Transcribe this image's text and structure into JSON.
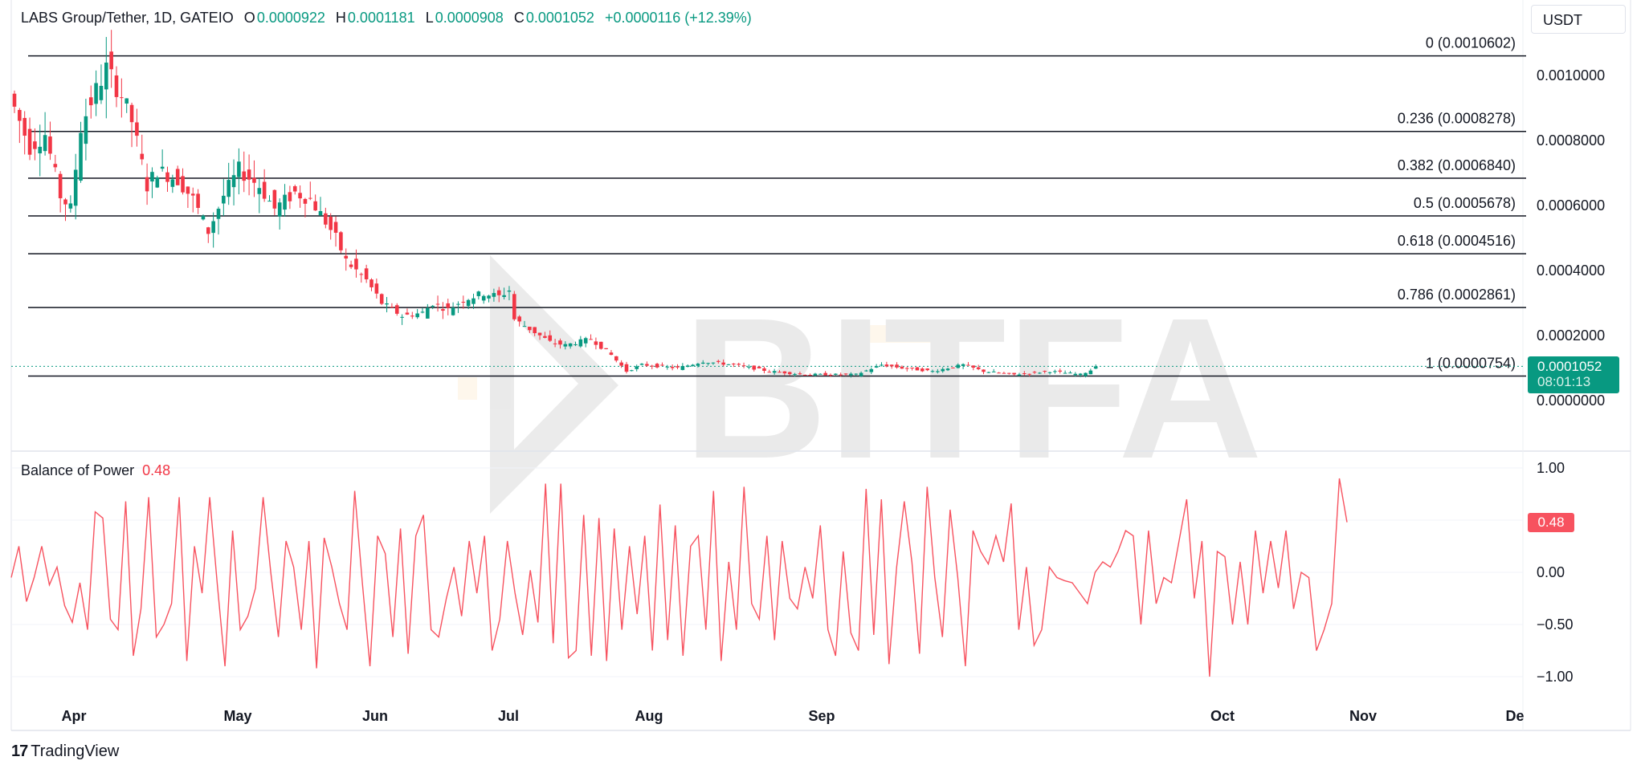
{
  "header": {
    "symbol": "LABS Group/Tether, 1D, GATEIO",
    "open_label": "O",
    "open": "0.0000922",
    "high_label": "H",
    "high": "0.0001181",
    "low_label": "L",
    "low": "0.0000908",
    "close_label": "C",
    "close": "0.0001052",
    "change": "+0.0000116 (+12.39%)"
  },
  "currency": "USDT",
  "last_price": {
    "price": "0.0001052",
    "countdown": "08:01:13"
  },
  "indicator": {
    "name": "Balance of Power",
    "value": "0.48"
  },
  "watermark": "BITFA",
  "footer": {
    "logo_mark": "17",
    "logo_text": "TradingView"
  },
  "colors": {
    "up": "#089981",
    "down": "#f23645",
    "bop_line": "#f7525f",
    "fib_line": "#131722"
  },
  "chart_data": [
    {
      "type": "candlestick",
      "title": "LABS Group/Tether, 1D, GATEIO",
      "price_axis_ticks": [
        "0.0010000",
        "0.0008000",
        "0.0006000",
        "0.0004000",
        "0.0002000",
        "0.0000000"
      ],
      "time_axis_ticks": [
        "Apr",
        "May",
        "Jun",
        "Jul",
        "Aug",
        "Sep",
        "Oct",
        "Nov",
        "De"
      ],
      "ylim": [
        -7e-05,
        0.00114
      ],
      "fib_levels": [
        {
          "level": "0",
          "price": 0.0010602,
          "label": "0 (0.0010602)"
        },
        {
          "level": "0.236",
          "price": 0.0008278,
          "label": "0.236 (0.0008278)"
        },
        {
          "level": "0.382",
          "price": 0.000684,
          "label": "0.382 (0.0006840)"
        },
        {
          "level": "0.5",
          "price": 0.0005678,
          "label": "0.5 (0.0005678)"
        },
        {
          "level": "0.618",
          "price": 0.0004516,
          "label": "0.618 (0.0004516)"
        },
        {
          "level": "0.786",
          "price": 0.0002861,
          "label": "0.786 (0.0002861)"
        },
        {
          "level": "1",
          "price": 7.54e-05,
          "label": "1 (0.0000754)"
        }
      ],
      "close_anchors": [
        [
          0,
          0.0009
        ],
        [
          3,
          0.00078
        ],
        [
          6,
          0.00082
        ],
        [
          9,
          0.00063
        ],
        [
          11,
          0.00059
        ],
        [
          13,
          0.00084
        ],
        [
          15,
          0.00092
        ],
        [
          18,
          0.00102
        ],
        [
          21,
          0.00094
        ],
        [
          23,
          0.00086
        ],
        [
          26,
          0.00066
        ],
        [
          28,
          0.00071
        ],
        [
          32,
          0.00068
        ],
        [
          35,
          0.00062
        ],
        [
          38,
          0.00052
        ],
        [
          41,
          0.00063
        ],
        [
          44,
          0.00071
        ],
        [
          48,
          0.00066
        ],
        [
          51,
          0.00059
        ],
        [
          55,
          0.00064
        ],
        [
          58,
          0.00062
        ],
        [
          61,
          0.00055
        ],
        [
          63,
          0.0005
        ],
        [
          65,
          0.00043
        ],
        [
          69,
          0.00037
        ],
        [
          72,
          0.0003
        ],
        [
          76,
          0.00026
        ],
        [
          80,
          0.00027
        ],
        [
          82,
          0.0003
        ],
        [
          85,
          0.00028
        ],
        [
          88,
          0.00031
        ],
        [
          92,
          0.00033
        ],
        [
          95,
          0.00032
        ],
        [
          97,
          0.00034
        ],
        [
          98,
          0.00025
        ],
        [
          101,
          0.00022
        ],
        [
          105,
          0.00018
        ],
        [
          108,
          0.00017
        ],
        [
          113,
          0.00019
        ],
        [
          117,
          0.00014
        ],
        [
          120,
          9e-05
        ],
        [
          123,
          0.00011
        ],
        [
          130,
          0.0001
        ],
        [
          135,
          0.00012
        ],
        [
          141,
          0.00011
        ],
        [
          148,
          9e-05
        ],
        [
          155,
          8e-05
        ],
        [
          165,
          8e-05
        ],
        [
          170,
          0.00011
        ],
        [
          174,
          0.0001
        ],
        [
          180,
          9e-05
        ],
        [
          186,
          0.00011
        ],
        [
          190,
          9e-05
        ],
        [
          196,
          8e-05
        ],
        [
          203,
          9e-05
        ],
        [
          209,
          8e-05
        ],
        [
          212,
          0.0001
        ]
      ]
    },
    {
      "type": "line",
      "title": "Balance of Power",
      "last_value": 0.48,
      "y_axis_ticks": [
        "1.00",
        "0.50",
        "0.00",
        "−0.50",
        "−1.00"
      ],
      "ylim": [
        -1.1,
        1.1
      ],
      "values": [
        -0.05,
        0.25,
        -0.28,
        -0.05,
        0.25,
        -0.12,
        0.05,
        -0.32,
        -0.48,
        -0.1,
        -0.55,
        0.58,
        0.52,
        -0.45,
        -0.55,
        0.68,
        -0.8,
        -0.35,
        0.72,
        -0.62,
        -0.5,
        -0.3,
        0.72,
        -0.85,
        0.25,
        -0.2,
        0.72,
        -0.12,
        -0.9,
        0.4,
        -0.55,
        -0.42,
        -0.15,
        0.72,
        0.0,
        -0.62,
        0.3,
        0.05,
        -0.55,
        0.3,
        -0.92,
        0.33,
        0.05,
        -0.3,
        -0.55,
        0.78,
        -0.1,
        -0.9,
        0.35,
        0.18,
        -0.62,
        0.42,
        -0.78,
        0.35,
        0.55,
        -0.55,
        -0.62,
        -0.25,
        0.05,
        -0.42,
        0.3,
        -0.2,
        0.35,
        -0.75,
        -0.45,
        0.3,
        -0.2,
        -0.6,
        0.02,
        -0.48,
        0.85,
        -0.68,
        0.85,
        -0.82,
        -0.75,
        0.55,
        -0.8,
        0.52,
        -0.85,
        0.42,
        -0.55,
        0.25,
        -0.4,
        0.35,
        -0.75,
        0.65,
        -0.65,
        0.45,
        -0.8,
        0.25,
        0.35,
        -0.55,
        0.78,
        -0.85,
        0.1,
        -0.55,
        0.82,
        -0.3,
        -0.45,
        0.35,
        -0.65,
        0.3,
        -0.25,
        -0.35,
        0.05,
        -0.25,
        0.45,
        -0.55,
        -0.8,
        0.2,
        -0.58,
        -0.75,
        0.8,
        -0.6,
        0.7,
        -0.88,
        0.05,
        0.68,
        0.1,
        -0.78,
        0.82,
        -0.05,
        -0.62,
        0.6,
        -0.05,
        -0.9,
        0.4,
        0.2,
        0.08,
        0.35,
        0.1,
        0.66,
        -0.55,
        0.05,
        -0.7,
        -0.55,
        0.05,
        -0.05,
        -0.08,
        -0.1,
        -0.2,
        -0.3,
        0.0,
        0.1,
        0.05,
        0.2,
        0.4,
        0.35,
        -0.5,
        0.4,
        -0.3,
        -0.05,
        -0.1,
        0.3,
        0.7,
        -0.25,
        0.3,
        -1.0,
        0.2,
        0.15,
        -0.5,
        0.1,
        -0.5,
        0.4,
        -0.2,
        0.3,
        -0.15,
        0.4,
        -0.35,
        0.0,
        -0.05,
        -0.75,
        -0.55,
        -0.3,
        0.9,
        0.48
      ]
    }
  ]
}
